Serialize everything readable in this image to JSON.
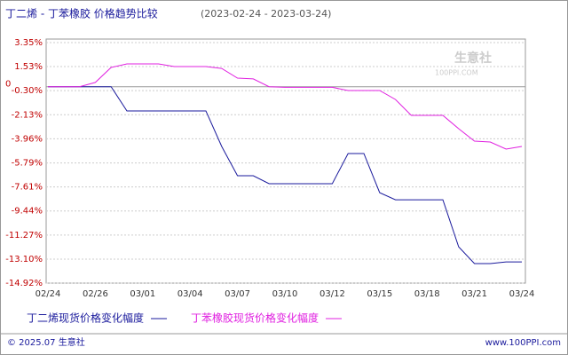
{
  "chart_data": {
    "type": "line",
    "title": "丁二烯 - 丁苯橡胶 价格趋势比较",
    "subtitle": "(2023-02-24 - 2023-03-24)",
    "zero_label": "0",
    "watermark": "生意社",
    "watermark_url": "100PPI.COM",
    "footer_left": "© 2025.07 生意社",
    "footer_right": "www.100PPI.com",
    "categories": [
      "02/24",
      null,
      null,
      "02/26",
      null,
      null,
      "03/01",
      null,
      null,
      "03/04",
      null,
      null,
      "03/07",
      null,
      null,
      "03/10",
      null,
      null,
      "03/12",
      null,
      null,
      "03/15",
      null,
      null,
      "03/18",
      null,
      null,
      "03/21",
      null,
      null,
      "03/24"
    ],
    "series": [
      {
        "name": "丁二烯现货价格变化幅度",
        "color": "#1a1a9c",
        "values": [
          0,
          0,
          0,
          0,
          0,
          -1.84,
          -1.84,
          -1.84,
          -1.84,
          -1.84,
          -1.84,
          -4.54,
          -6.76,
          -6.76,
          -7.37,
          -7.37,
          -7.37,
          -7.37,
          -7.37,
          -5.08,
          -5.08,
          -8.05,
          -8.59,
          -8.59,
          -8.59,
          -8.59,
          -12.16,
          -13.44,
          -13.44,
          -13.31,
          -13.31
        ]
      },
      {
        "name": "丁苯橡胶现货价格变化幅度",
        "color": "#e020e0",
        "values": [
          0,
          0,
          0,
          0.32,
          1.46,
          1.73,
          1.73,
          1.73,
          1.53,
          1.53,
          1.53,
          1.39,
          0.65,
          0.59,
          0,
          -0.05,
          -0.05,
          -0.05,
          -0.05,
          -0.29,
          -0.29,
          -0.29,
          -0.97,
          -2.18,
          -2.18,
          -2.18,
          -3.19,
          -4.13,
          -4.2,
          -4.74,
          -4.54
        ]
      }
    ],
    "ylim": [
      -14.92,
      3.35
    ],
    "yticks": [
      {
        "value": 3.35,
        "label": "3.35%"
      },
      {
        "value": 1.53,
        "label": "1.53%"
      },
      {
        "value": -0.3,
        "label": "-0.30%"
      },
      {
        "value": -2.13,
        "label": "-2.13%"
      },
      {
        "value": -3.96,
        "label": "-3.96%"
      },
      {
        "value": -5.79,
        "label": "-5.79%"
      },
      {
        "value": -7.61,
        "label": "-7.61%"
      },
      {
        "value": -9.44,
        "label": "-9.44%"
      },
      {
        "value": -11.27,
        "label": "-11.27%"
      },
      {
        "value": -13.1,
        "label": "-13.10%"
      },
      {
        "value": -14.92,
        "label": "-14.92%"
      }
    ],
    "grid": true
  }
}
